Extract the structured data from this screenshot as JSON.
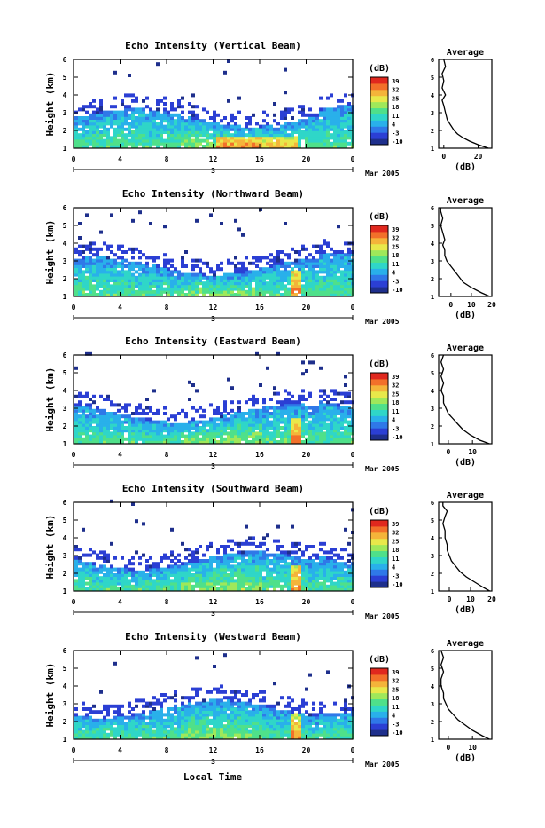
{
  "x_axis_title": "Local Time",
  "date_label": "Mar 2005",
  "day_label": "3",
  "x_ticks": [
    "0",
    "4",
    "8",
    "12",
    "16",
    "20",
    "0"
  ],
  "y_label": "Height (km)",
  "y_ticks": [
    "1",
    "2",
    "3",
    "4",
    "5",
    "6"
  ],
  "colorbar": {
    "unit": "(dB)",
    "ticks": [
      "39",
      "32",
      "25",
      "18",
      "11",
      "4",
      "-3",
      "-10"
    ],
    "colors": [
      "#1e2f8c",
      "#2b3fd4",
      "#2f78e8",
      "#29b0ea",
      "#2fd6c8",
      "#4fe08a",
      "#9fe85a",
      "#e8e84a",
      "#f4b43a",
      "#f2702a",
      "#e0281e"
    ]
  },
  "avg_title": "Average",
  "avg_xlabel": "(dB)",
  "chart_data": [
    {
      "type": "heatmap",
      "title": "Echo Intensity (Vertical Beam)",
      "xlabel": "",
      "ylabel": "Height (km)",
      "xlim": [
        0,
        24
      ],
      "ylim": [
        1,
        6
      ],
      "avg_ticks": [
        "0",
        "20"
      ],
      "avg_xlim": [
        -3,
        28
      ],
      "avg_profile": {
        "h": [
          1.0,
          1.2,
          1.4,
          1.6,
          1.8,
          2.0,
          2.3,
          2.6,
          3.0,
          3.4,
          3.7,
          4.0,
          4.4,
          4.8,
          5.2,
          5.6,
          6.0
        ],
        "db": [
          26,
          20,
          15,
          11,
          8,
          6,
          4,
          2,
          1,
          0,
          -1,
          1,
          -1,
          0,
          -1,
          1,
          0
        ]
      }
    },
    {
      "type": "heatmap",
      "title": "Echo Intensity (Northward Beam)",
      "xlabel": "",
      "ylabel": "Height (km)",
      "xlim": [
        0,
        24
      ],
      "ylim": [
        1,
        6
      ],
      "avg_ticks": [
        "0",
        "10",
        "20"
      ],
      "avg_xlim": [
        -6,
        20
      ],
      "avg_profile": {
        "h": [
          1.0,
          1.2,
          1.5,
          1.8,
          2.1,
          2.4,
          2.7,
          3.0,
          3.3,
          3.6,
          3.9,
          4.2,
          4.6,
          5.0,
          5.4,
          5.8,
          6.0
        ],
        "db": [
          19,
          15,
          10,
          6,
          4,
          2,
          0,
          -2,
          -3,
          -3,
          -4,
          -3,
          -4,
          -5,
          -4,
          -5,
          -5
        ]
      }
    },
    {
      "type": "heatmap",
      "title": "Echo Intensity (Eastward Beam)",
      "xlabel": "",
      "ylabel": "Height (km)",
      "xlim": [
        0,
        24
      ],
      "ylim": [
        1,
        6
      ],
      "avg_ticks": [
        "0",
        "10"
      ],
      "avg_xlim": [
        -4,
        18
      ],
      "avg_profile": {
        "h": [
          1.0,
          1.2,
          1.5,
          1.8,
          2.1,
          2.4,
          2.7,
          3.0,
          3.3,
          3.7,
          4.0,
          4.4,
          4.8,
          5.2,
          5.6,
          6.0
        ],
        "db": [
          17,
          13,
          9,
          6,
          4,
          2,
          0,
          -1,
          -2,
          -2,
          -3,
          -2,
          -3,
          -2,
          -3,
          -2
        ]
      }
    },
    {
      "type": "heatmap",
      "title": "Echo Intensity (Southward Beam)",
      "xlabel": "",
      "ylabel": "Height (km)",
      "xlim": [
        0,
        24
      ],
      "ylim": [
        1,
        6
      ],
      "avg_ticks": [
        "0",
        "10",
        "20"
      ],
      "avg_xlim": [
        -5,
        20
      ],
      "avg_profile": {
        "h": [
          1.0,
          1.2,
          1.5,
          1.8,
          2.1,
          2.4,
          2.7,
          3.0,
          3.3,
          3.6,
          4.0,
          4.4,
          4.8,
          5.2,
          5.5,
          5.8,
          6.0
        ],
        "db": [
          19,
          16,
          12,
          8,
          5,
          3,
          1,
          0,
          -1,
          -1,
          -2,
          -2,
          -3,
          -2,
          -1,
          -3,
          -3
        ]
      }
    },
    {
      "type": "heatmap",
      "title": "Echo Intensity (Westward Beam)",
      "xlabel": "",
      "ylabel": "Height (km)",
      "xlim": [
        0,
        24
      ],
      "ylim": [
        1,
        6
      ],
      "avg_ticks": [
        "0",
        "10"
      ],
      "avg_xlim": [
        -4,
        18
      ],
      "avg_profile": {
        "h": [
          1.0,
          1.2,
          1.5,
          1.8,
          2.1,
          2.4,
          2.7,
          3.0,
          3.3,
          3.6,
          4.0,
          4.4,
          4.8,
          5.2,
          5.6,
          6.0
        ],
        "db": [
          17,
          14,
          10,
          7,
          4,
          2,
          0,
          -1,
          -2,
          -2,
          -3,
          -3,
          -2,
          -3,
          -2,
          -3
        ]
      }
    }
  ]
}
